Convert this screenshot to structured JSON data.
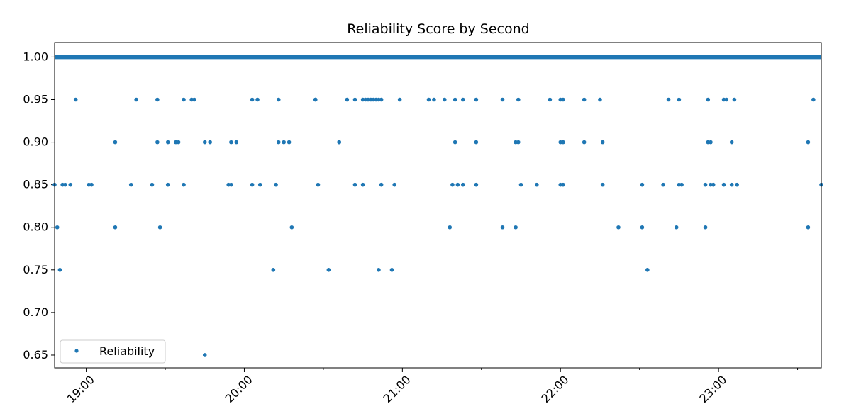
{
  "chart_data": {
    "type": "scatter",
    "title": "Reliability Score by Second",
    "xlabel": "",
    "ylabel": "",
    "x_ticks": [
      "19:00",
      "20:00",
      "21:00",
      "22:00",
      "23:00"
    ],
    "y_ticks": [
      "0.65",
      "0.70",
      "0.75",
      "0.80",
      "0.85",
      "0.90",
      "0.95",
      "1.00"
    ],
    "xlim": [
      "18:48",
      "23:39"
    ],
    "ylim": [
      0.635,
      1.017
    ],
    "legend": {
      "position": "lower-left",
      "entries": [
        "Reliability"
      ]
    },
    "grid": false,
    "color": "#1f77b4",
    "series": [
      {
        "name": "Reliability",
        "dense_band": {
          "y": 1.0,
          "x_start": "18:48",
          "x_end": "23:39"
        },
        "points": [
          {
            "x": "18:48",
            "y": 0.85
          },
          {
            "x": "18:49",
            "y": 0.8
          },
          {
            "x": "18:50",
            "y": 0.75
          },
          {
            "x": "18:51",
            "y": 0.85
          },
          {
            "x": "18:52",
            "y": 0.85
          },
          {
            "x": "18:54",
            "y": 0.85
          },
          {
            "x": "18:56",
            "y": 0.95
          },
          {
            "x": "19:01",
            "y": 0.85
          },
          {
            "x": "19:02",
            "y": 0.85
          },
          {
            "x": "19:11",
            "y": 0.9
          },
          {
            "x": "19:11",
            "y": 0.8
          },
          {
            "x": "19:17",
            "y": 0.85
          },
          {
            "x": "19:19",
            "y": 0.95
          },
          {
            "x": "19:25",
            "y": 0.85
          },
          {
            "x": "19:27",
            "y": 0.95
          },
          {
            "x": "19:27",
            "y": 0.9
          },
          {
            "x": "19:28",
            "y": 0.8
          },
          {
            "x": "19:31",
            "y": 0.9
          },
          {
            "x": "19:31",
            "y": 0.85
          },
          {
            "x": "19:34",
            "y": 0.9
          },
          {
            "x": "19:35",
            "y": 0.9
          },
          {
            "x": "19:37",
            "y": 0.95
          },
          {
            "x": "19:37",
            "y": 0.85
          },
          {
            "x": "19:40",
            "y": 0.95
          },
          {
            "x": "19:41",
            "y": 0.95
          },
          {
            "x": "19:45",
            "y": 0.9
          },
          {
            "x": "19:45",
            "y": 0.65
          },
          {
            "x": "19:47",
            "y": 0.9
          },
          {
            "x": "19:54",
            "y": 0.85
          },
          {
            "x": "19:55",
            "y": 0.85
          },
          {
            "x": "19:55",
            "y": 0.9
          },
          {
            "x": "19:57",
            "y": 0.9
          },
          {
            "x": "20:03",
            "y": 0.95
          },
          {
            "x": "20:03",
            "y": 0.85
          },
          {
            "x": "20:05",
            "y": 0.95
          },
          {
            "x": "20:06",
            "y": 0.85
          },
          {
            "x": "20:11",
            "y": 0.75
          },
          {
            "x": "20:12",
            "y": 0.85
          },
          {
            "x": "20:13",
            "y": 0.9
          },
          {
            "x": "20:13",
            "y": 0.95
          },
          {
            "x": "20:15",
            "y": 0.9
          },
          {
            "x": "20:17",
            "y": 0.9
          },
          {
            "x": "20:18",
            "y": 0.8
          },
          {
            "x": "20:27",
            "y": 0.95
          },
          {
            "x": "20:27",
            "y": 0.95
          },
          {
            "x": "20:28",
            "y": 0.85
          },
          {
            "x": "20:32",
            "y": 0.75
          },
          {
            "x": "20:36",
            "y": 0.9
          },
          {
            "x": "20:36",
            "y": 0.9
          },
          {
            "x": "20:39",
            "y": 0.95
          },
          {
            "x": "20:42",
            "y": 0.95
          },
          {
            "x": "20:42",
            "y": 0.85
          },
          {
            "x": "20:45",
            "y": 0.85
          },
          {
            "x": "20:45",
            "y": 0.95
          },
          {
            "x": "20:46",
            "y": 0.95
          },
          {
            "x": "20:47",
            "y": 0.95
          },
          {
            "x": "20:48",
            "y": 0.95
          },
          {
            "x": "20:49",
            "y": 0.95
          },
          {
            "x": "20:50",
            "y": 0.95
          },
          {
            "x": "20:51",
            "y": 0.95
          },
          {
            "x": "20:51",
            "y": 0.75
          },
          {
            "x": "20:52",
            "y": 0.95
          },
          {
            "x": "20:52",
            "y": 0.85
          },
          {
            "x": "20:56",
            "y": 0.75
          },
          {
            "x": "20:57",
            "y": 0.85
          },
          {
            "x": "20:59",
            "y": 0.95
          },
          {
            "x": "21:10",
            "y": 0.95
          },
          {
            "x": "21:12",
            "y": 0.95
          },
          {
            "x": "21:16",
            "y": 0.95
          },
          {
            "x": "21:18",
            "y": 0.8
          },
          {
            "x": "21:19",
            "y": 0.85
          },
          {
            "x": "21:20",
            "y": 0.95
          },
          {
            "x": "21:20",
            "y": 0.9
          },
          {
            "x": "21:21",
            "y": 0.85
          },
          {
            "x": "21:23",
            "y": 0.95
          },
          {
            "x": "21:23",
            "y": 0.85
          },
          {
            "x": "21:28",
            "y": 0.95
          },
          {
            "x": "21:28",
            "y": 0.9
          },
          {
            "x": "21:28",
            "y": 0.85
          },
          {
            "x": "21:38",
            "y": 0.95
          },
          {
            "x": "21:38",
            "y": 0.8
          },
          {
            "x": "21:43",
            "y": 0.9
          },
          {
            "x": "21:43",
            "y": 0.8
          },
          {
            "x": "21:44",
            "y": 0.95
          },
          {
            "x": "21:44",
            "y": 0.9
          },
          {
            "x": "21:45",
            "y": 0.85
          },
          {
            "x": "21:51",
            "y": 0.85
          },
          {
            "x": "21:56",
            "y": 0.95
          },
          {
            "x": "22:00",
            "y": 0.95
          },
          {
            "x": "22:00",
            "y": 0.9
          },
          {
            "x": "22:00",
            "y": 0.85
          },
          {
            "x": "22:01",
            "y": 0.95
          },
          {
            "x": "22:01",
            "y": 0.9
          },
          {
            "x": "22:01",
            "y": 0.85
          },
          {
            "x": "22:09",
            "y": 0.95
          },
          {
            "x": "22:09",
            "y": 0.9
          },
          {
            "x": "22:15",
            "y": 0.95
          },
          {
            "x": "22:16",
            "y": 0.9
          },
          {
            "x": "22:16",
            "y": 0.85
          },
          {
            "x": "22:22",
            "y": 0.8
          },
          {
            "x": "22:31",
            "y": 0.85
          },
          {
            "x": "22:31",
            "y": 0.8
          },
          {
            "x": "22:33",
            "y": 0.75
          },
          {
            "x": "22:39",
            "y": 0.85
          },
          {
            "x": "22:41",
            "y": 0.95
          },
          {
            "x": "22:44",
            "y": 0.8
          },
          {
            "x": "22:45",
            "y": 0.85
          },
          {
            "x": "22:45",
            "y": 0.95
          },
          {
            "x": "22:46",
            "y": 0.85
          },
          {
            "x": "22:55",
            "y": 0.8
          },
          {
            "x": "22:55",
            "y": 0.85
          },
          {
            "x": "22:56",
            "y": 0.95
          },
          {
            "x": "22:56",
            "y": 0.9
          },
          {
            "x": "22:57",
            "y": 0.9
          },
          {
            "x": "22:57",
            "y": 0.85
          },
          {
            "x": "22:58",
            "y": 0.85
          },
          {
            "x": "23:02",
            "y": 0.95
          },
          {
            "x": "23:02",
            "y": 0.85
          },
          {
            "x": "23:03",
            "y": 0.95
          },
          {
            "x": "23:05",
            "y": 0.85
          },
          {
            "x": "23:05",
            "y": 0.9
          },
          {
            "x": "23:06",
            "y": 0.95
          },
          {
            "x": "23:07",
            "y": 0.85
          },
          {
            "x": "23:34",
            "y": 0.9
          },
          {
            "x": "23:34",
            "y": 0.8
          },
          {
            "x": "23:36",
            "y": 0.95
          },
          {
            "x": "23:39",
            "y": 0.85
          }
        ]
      }
    ]
  }
}
